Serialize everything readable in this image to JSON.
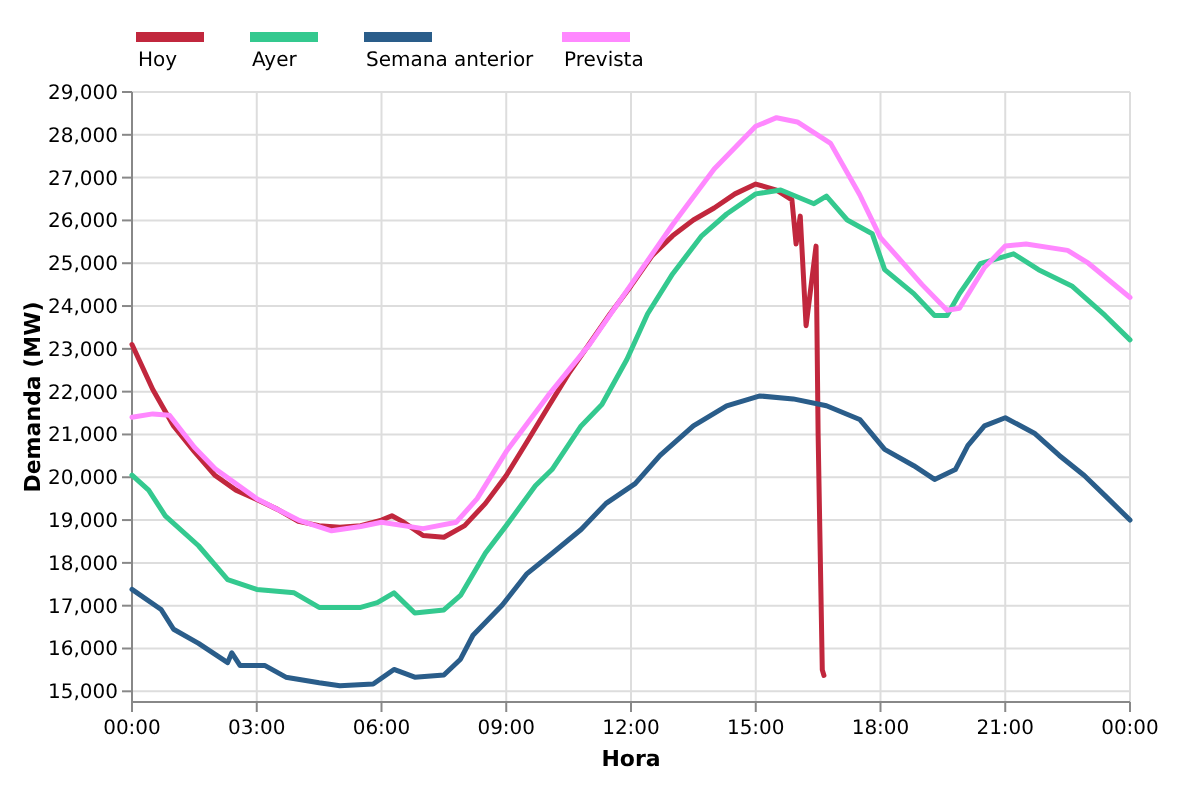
{
  "chart_data": {
    "type": "line",
    "xlabel": "Hora",
    "ylabel": "Demanda (MW)",
    "xlim": [
      0,
      24
    ],
    "xticks": [
      {
        "value": 0,
        "label": "00:00"
      },
      {
        "value": 3,
        "label": "03:00"
      },
      {
        "value": 6,
        "label": "06:00"
      },
      {
        "value": 9,
        "label": "09:00"
      },
      {
        "value": 12,
        "label": "12:00"
      },
      {
        "value": 15,
        "label": "15:00"
      },
      {
        "value": 18,
        "label": "18:00"
      },
      {
        "value": 21,
        "label": "21:00"
      },
      {
        "value": 24,
        "label": "00:00"
      }
    ],
    "ylim": [
      14750,
      29000
    ],
    "yticks": [
      {
        "value": 15000,
        "label": "15,000"
      },
      {
        "value": 16000,
        "label": "16,000"
      },
      {
        "value": 17000,
        "label": "17,000"
      },
      {
        "value": 18000,
        "label": "18,000"
      },
      {
        "value": 19000,
        "label": "19,000"
      },
      {
        "value": 20000,
        "label": "20,000"
      },
      {
        "value": 21000,
        "label": "21,000"
      },
      {
        "value": 22000,
        "label": "22,000"
      },
      {
        "value": 23000,
        "label": "23,000"
      },
      {
        "value": 24000,
        "label": "24,000"
      },
      {
        "value": 25000,
        "label": "25,000"
      },
      {
        "value": 26000,
        "label": "26,000"
      },
      {
        "value": 27000,
        "label": "27,000"
      },
      {
        "value": 28000,
        "label": "28,000"
      },
      {
        "value": 29000,
        "label": "29,000"
      }
    ],
    "grid": true,
    "legend": "top left",
    "marker": "none",
    "line_style": "solid",
    "series": [
      {
        "name": "Hoy",
        "color": "#c1273d",
        "x": [
          0,
          0.5,
          1,
          1.5,
          2,
          2.5,
          3,
          3.5,
          4,
          4.5,
          5,
          5.5,
          6,
          6.25,
          6.5,
          7,
          7.5,
          8,
          8.5,
          9,
          9.5,
          10,
          10.5,
          11,
          11.5,
          12,
          12.5,
          13,
          13.5,
          14,
          14.5,
          15,
          15.5,
          15.87,
          15.97,
          16.07,
          16.21,
          16.45,
          16.5,
          16.6,
          16.64
        ],
        "values": [
          23100,
          22050,
          21200,
          20600,
          20040,
          19700,
          19480,
          19250,
          18970,
          18870,
          18830,
          18870,
          19000,
          19100,
          18970,
          18640,
          18600,
          18870,
          19390,
          20040,
          20830,
          21630,
          22420,
          23120,
          23820,
          24470,
          25170,
          25640,
          26010,
          26290,
          26620,
          26850,
          26710,
          26480,
          25450,
          26100,
          23540,
          25400,
          21000,
          15500,
          15370
        ]
      },
      {
        "name": "Ayer",
        "color": "#34c98f",
        "x": [
          0,
          0.4,
          0.8,
          1.6,
          2.3,
          3,
          3.9,
          4.5,
          5.5,
          5.9,
          6.3,
          6.8,
          7.5,
          7.9,
          8.5,
          9,
          9.7,
          10.1,
          10.8,
          11.3,
          11.9,
          12.4,
          13,
          13.7,
          14.3,
          15,
          15.6,
          16.4,
          16.7,
          17.2,
          17.8,
          18.1,
          18.8,
          19.3,
          19.6,
          19.9,
          20.4,
          21.2,
          21.8,
          22.6,
          23.4,
          24
        ],
        "values": [
          20050,
          19700,
          19100,
          18400,
          17610,
          17380,
          17300,
          16960,
          16960,
          17070,
          17300,
          16830,
          16900,
          17240,
          18230,
          18870,
          19800,
          20180,
          21200,
          21700,
          22750,
          23820,
          24750,
          25640,
          26150,
          26620,
          26710,
          26390,
          26570,
          26010,
          25690,
          24850,
          24290,
          23780,
          23780,
          24290,
          24990,
          25220,
          24850,
          24470,
          23780,
          23210
        ]
      },
      {
        "name": "Semana anterior",
        "color": "#2a5d8a",
        "x": [
          0,
          0.7,
          1,
          1.6,
          2.3,
          2.4,
          2.6,
          3.2,
          3.7,
          4.5,
          5,
          5.8,
          6.3,
          6.8,
          7.5,
          7.9,
          8.2,
          8.9,
          9.5,
          10.1,
          10.8,
          11.4,
          12.1,
          12.7,
          13.5,
          14.3,
          15.1,
          15.9,
          16.7,
          17.5,
          18.1,
          18.8,
          19.3,
          19.8,
          20.1,
          20.5,
          21,
          21.7,
          22.3,
          22.9,
          23.4,
          24
        ],
        "values": [
          17380,
          16910,
          16450,
          16120,
          15670,
          15900,
          15600,
          15600,
          15330,
          15200,
          15130,
          15170,
          15510,
          15330,
          15380,
          15750,
          16310,
          17010,
          17750,
          18220,
          18780,
          19390,
          19850,
          20510,
          21200,
          21670,
          21900,
          21830,
          21670,
          21350,
          20650,
          20270,
          19950,
          20180,
          20740,
          21200,
          21390,
          21030,
          20510,
          20040,
          19570,
          19000
        ]
      },
      {
        "name": "Prevista",
        "color": "#ff88ff",
        "x": [
          0,
          0.5,
          0.9,
          1.5,
          2,
          3,
          4,
          4.8,
          5.5,
          6,
          7,
          7.8,
          8.3,
          9,
          10,
          11,
          12,
          13,
          14,
          15,
          15.5,
          16,
          16.8,
          17.5,
          18,
          19,
          19.6,
          19.9,
          20.5,
          21,
          21.5,
          22.5,
          23,
          24
        ],
        "values": [
          21400,
          21480,
          21450,
          20700,
          20200,
          19500,
          19000,
          18750,
          18850,
          18950,
          18800,
          18950,
          19500,
          20600,
          21900,
          23100,
          24500,
          25900,
          27200,
          28200,
          28400,
          28300,
          27800,
          26600,
          25600,
          24500,
          23900,
          23950,
          24900,
          25400,
          25450,
          25300,
          25000,
          24200
        ]
      }
    ]
  }
}
